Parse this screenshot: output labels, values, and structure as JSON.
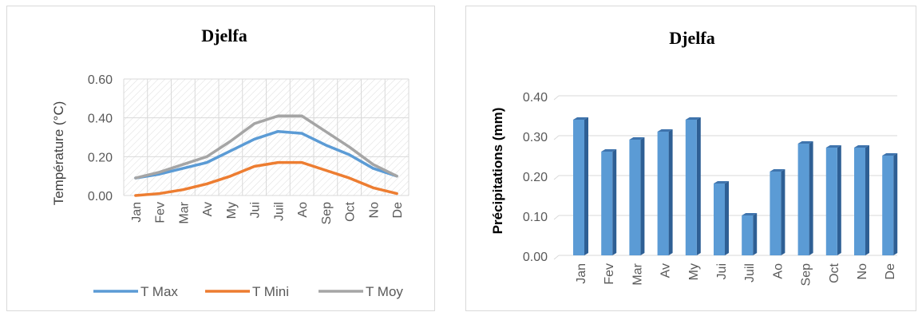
{
  "chart_data": [
    {
      "type": "line",
      "title": "Djelfa",
      "ylabel": "Température (°C)",
      "xlabel": "",
      "categories": [
        "Jan",
        "Fev",
        "Mar",
        "Av",
        "My",
        "Jui",
        "Juil",
        "Ao",
        "Sep",
        "Oct",
        "No",
        "De"
      ],
      "ylim": [
        0,
        0.6
      ],
      "yticks": [
        "0.00",
        "0.20",
        "0.40",
        "0.60"
      ],
      "grid": true,
      "legend_position": "bottom",
      "series": [
        {
          "name": "T Max",
          "color": "#5b9bd5",
          "values": [
            0.09,
            0.11,
            0.14,
            0.17,
            0.23,
            0.29,
            0.33,
            0.32,
            0.26,
            0.21,
            0.14,
            0.1
          ]
        },
        {
          "name": "T Mini",
          "color": "#ed7d31",
          "values": [
            0.0,
            0.01,
            0.03,
            0.06,
            0.1,
            0.15,
            0.17,
            0.17,
            0.13,
            0.09,
            0.04,
            0.01
          ]
        },
        {
          "name": "T Moy",
          "color": "#a5a5a5",
          "values": [
            0.09,
            0.12,
            0.16,
            0.2,
            0.28,
            0.37,
            0.41,
            0.41,
            0.33,
            0.25,
            0.16,
            0.1
          ]
        }
      ]
    },
    {
      "type": "bar",
      "title": "Djelfa",
      "ylabel": "Précipitations (mm)",
      "xlabel": "",
      "categories": [
        "Jan",
        "Fev",
        "Mar",
        "Av",
        "My",
        "Jui",
        "Juil",
        "Ao",
        "Sep",
        "Oct",
        "No",
        "De"
      ],
      "values": [
        0.34,
        0.26,
        0.29,
        0.31,
        0.34,
        0.18,
        0.1,
        0.21,
        0.28,
        0.27,
        0.27,
        0.25
      ],
      "ylim": [
        0,
        0.4
      ],
      "yticks": [
        "0.00",
        "0.10",
        "0.20",
        "0.30",
        "0.40"
      ],
      "grid": true,
      "bar_color": "#5b9bd5",
      "bar_side_color": "#2e5f94"
    }
  ]
}
